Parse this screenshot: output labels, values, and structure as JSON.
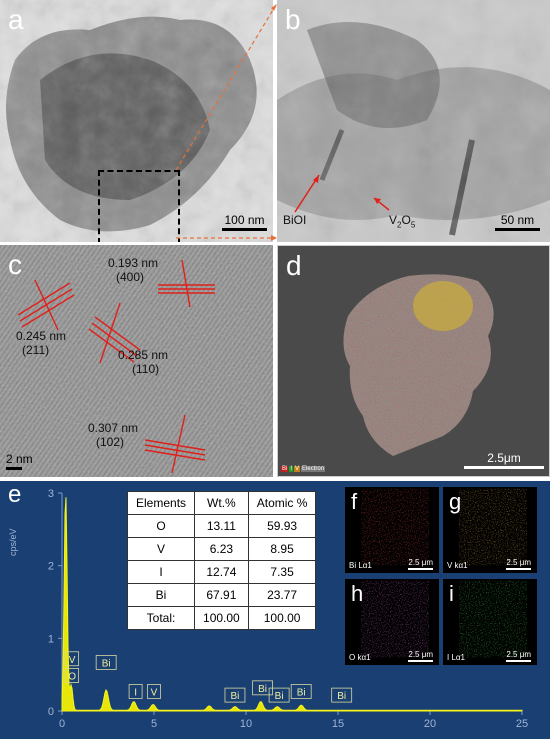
{
  "panels": {
    "a": {
      "label": "a",
      "scale": "100 nm"
    },
    "b": {
      "label": "b",
      "scale": "50 nm",
      "annotations": {
        "biol": "BiOI",
        "v2o5_main": "V",
        "v2o5_sub2": "2",
        "v2o5_o": "O",
        "v2o5_sub5": "5"
      }
    },
    "c": {
      "label": "c",
      "scale": "2 nm",
      "fringes": [
        {
          "d": "0.193 nm",
          "hkl": "(400)"
        },
        {
          "d": "0.245 nm",
          "hkl": "(211)"
        },
        {
          "d": "0.285 nm",
          "hkl": "(110)"
        },
        {
          "d": "0.307 nm",
          "hkl": "(102)"
        }
      ]
    },
    "d": {
      "label": "d",
      "scale": "2.5μm",
      "legend": [
        "Bi",
        "I",
        "V",
        "Electron"
      ]
    },
    "e": {
      "label": "e",
      "ylabel": "cps/eV"
    }
  },
  "table": {
    "headers": [
      "Elements",
      "Wt.%",
      "Atomic %"
    ],
    "rows": [
      [
        "O",
        "13.11",
        "59.93"
      ],
      [
        "V",
        "6.23",
        "8.95"
      ],
      [
        "I",
        "12.74",
        "7.35"
      ],
      [
        "Bi",
        "67.91",
        "23.77"
      ],
      [
        "Total:",
        "100.00",
        "100.00"
      ]
    ]
  },
  "maps": [
    {
      "label": "f",
      "element": "Bi Lα1",
      "scale": "2.5 μm",
      "color": "#e02020"
    },
    {
      "label": "g",
      "element": "V kα1",
      "scale": "2.5 μm",
      "color": "#e08a20"
    },
    {
      "label": "h",
      "element": "O kα1",
      "scale": "2.5 μm",
      "color": "#c040c0"
    },
    {
      "label": "i",
      "element": "I Lα1",
      "scale": "2.5 μm",
      "color": "#30c030"
    }
  ],
  "chart_data": {
    "type": "line",
    "ylabel": "cps/eV",
    "xlim": [
      0,
      25
    ],
    "ylim": [
      0,
      3
    ],
    "x_ticks": [
      "0",
      "5",
      "10",
      "15",
      "20",
      "25"
    ],
    "y_ticks": [
      "0",
      "1",
      "2",
      "3"
    ],
    "peaks": [
      {
        "x": 0.2,
        "y": 3.0
      },
      {
        "x": 0.5,
        "y": 0.35
      },
      {
        "x": 2.4,
        "y": 0.28
      },
      {
        "x": 3.9,
        "y": 0.12
      },
      {
        "x": 4.95,
        "y": 0.08
      },
      {
        "x": 8.0,
        "y": 0.06
      },
      {
        "x": 9.4,
        "y": 0.05
      },
      {
        "x": 10.8,
        "y": 0.12
      },
      {
        "x": 11.7,
        "y": 0.05
      },
      {
        "x": 13.0,
        "y": 0.07
      }
    ],
    "peak_labels": [
      {
        "text": "V",
        "x": 0.55,
        "y": 0.65
      },
      {
        "text": "O",
        "x": 0.55,
        "y": 0.42
      },
      {
        "text": "Bi",
        "x": 2.4,
        "y": 0.6
      },
      {
        "text": "I",
        "x": 4.0,
        "y": 0.2
      },
      {
        "text": "V",
        "x": 5.0,
        "y": 0.2
      },
      {
        "text": "Bi",
        "x": 9.4,
        "y": 0.15
      },
      {
        "text": "Bi",
        "x": 10.9,
        "y": 0.25
      },
      {
        "text": "Bi",
        "x": 11.8,
        "y": 0.15
      },
      {
        "text": "Bi",
        "x": 13.0,
        "y": 0.2
      },
      {
        "text": "Bi",
        "x": 15.2,
        "y": 0.15
      }
    ]
  }
}
